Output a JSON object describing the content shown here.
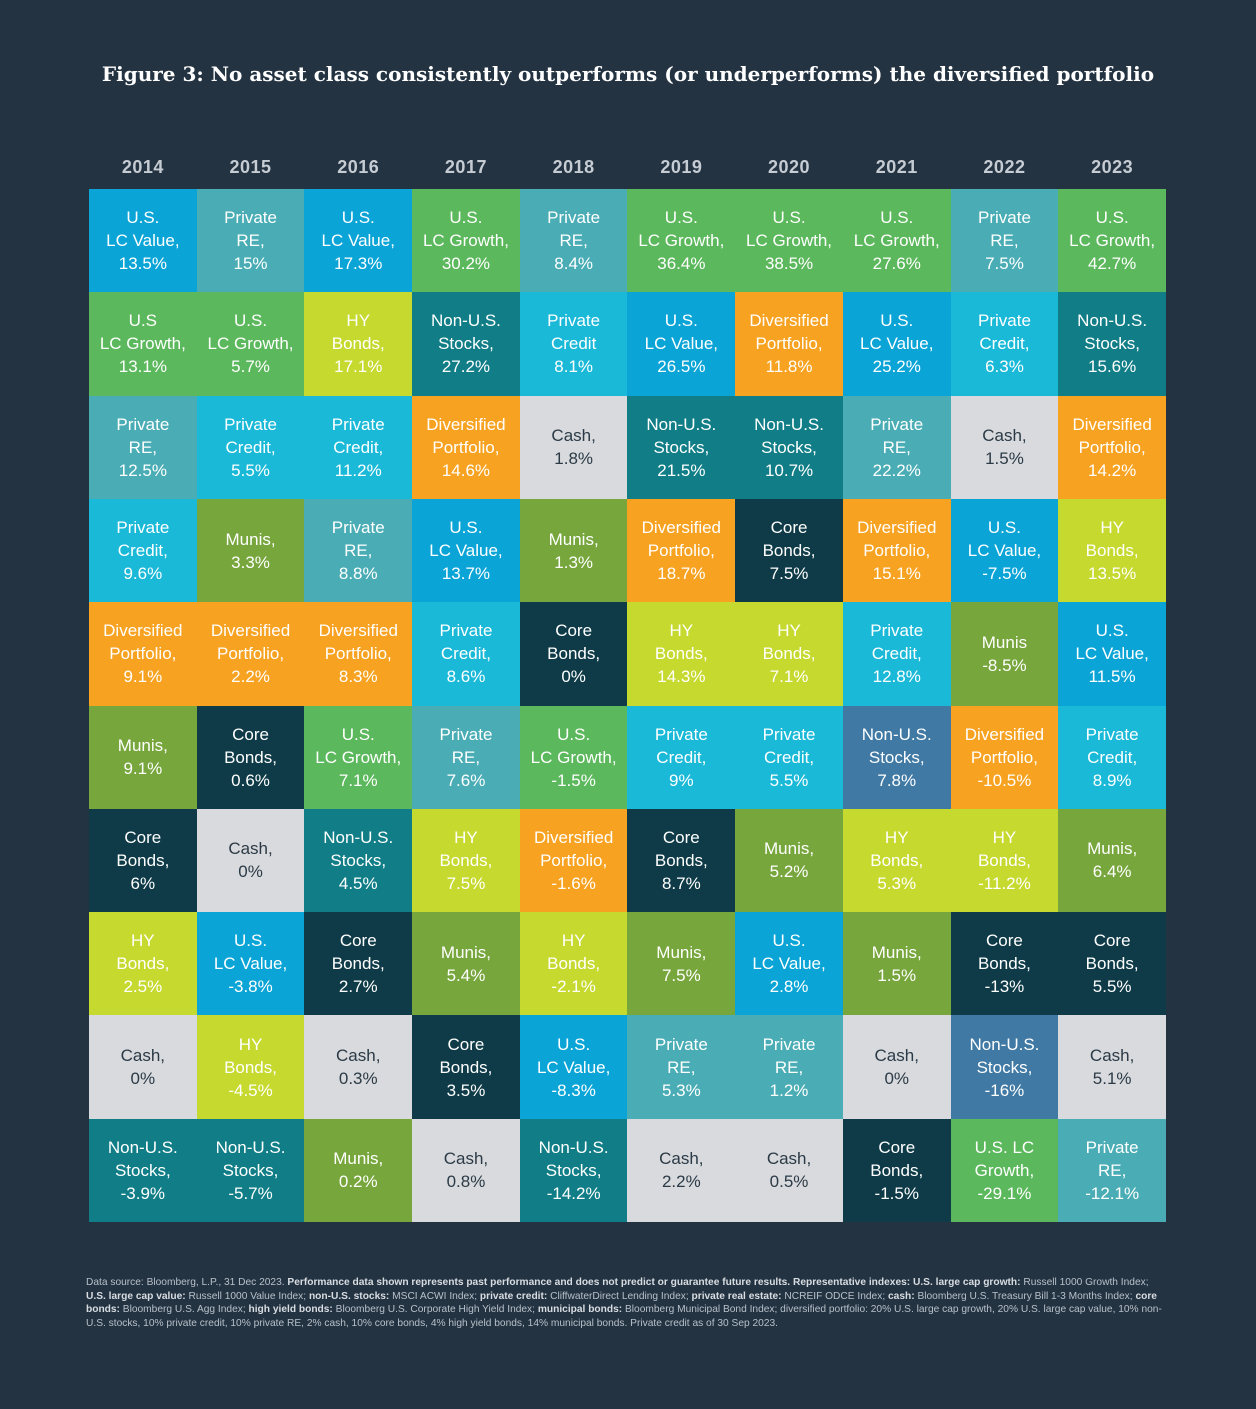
{
  "title": "Figure 3: No asset class consistently outperforms (or underperforms) the diversified portfolio",
  "colors": {
    "background": "#243342",
    "lc_value": "#0aa4d6",
    "lc_growth": "#5cb85c",
    "private_re": "#4aadb5",
    "private_credit": "#1ab9d8",
    "hy_bonds": "#c6d92e",
    "non_us_stocks": "#117e87",
    "diversified": "#f7a220",
    "cash": "#d8dadd",
    "munis": "#77a63c",
    "core_bonds": "#0e3b47",
    "non_us_stocks_alt": "#3f79a4"
  },
  "chart_data": {
    "type": "table",
    "title": "Figure 3: No asset class consistently outperforms (or underperforms) the diversified portfolio",
    "years": [
      "2014",
      "2015",
      "2016",
      "2017",
      "2018",
      "2019",
      "2020",
      "2021",
      "2022",
      "2023"
    ],
    "columns": [
      [
        {
          "lines": [
            "U.S.",
            "LC Value,",
            "13.5%"
          ],
          "asset": "lc_value"
        },
        {
          "lines": [
            "U.S",
            "LC Growth,",
            "13.1%"
          ],
          "asset": "lc_growth"
        },
        {
          "lines": [
            "Private",
            "RE,",
            "12.5%"
          ],
          "asset": "private_re"
        },
        {
          "lines": [
            "Private",
            "Credit,",
            "9.6%"
          ],
          "asset": "private_credit"
        },
        {
          "lines": [
            "Diversified",
            "Portfolio,",
            "9.1%"
          ],
          "asset": "diversified"
        },
        {
          "lines": [
            "Munis,",
            "9.1%"
          ],
          "asset": "munis"
        },
        {
          "lines": [
            "Core",
            "Bonds,",
            "6%"
          ],
          "asset": "core_bonds"
        },
        {
          "lines": [
            "HY",
            "Bonds,",
            "2.5%"
          ],
          "asset": "hy_bonds"
        },
        {
          "lines": [
            "Cash,",
            "0%"
          ],
          "asset": "cash"
        },
        {
          "lines": [
            "Non-U.S.",
            "Stocks,",
            "-3.9%"
          ],
          "asset": "non_us_stocks"
        }
      ],
      [
        {
          "lines": [
            "Private",
            "RE,",
            "15%"
          ],
          "asset": "private_re"
        },
        {
          "lines": [
            "U.S.",
            "LC Growth,",
            "5.7%"
          ],
          "asset": "lc_growth"
        },
        {
          "lines": [
            "Private",
            "Credit,",
            "5.5%"
          ],
          "asset": "private_credit"
        },
        {
          "lines": [
            "Munis,",
            "3.3%"
          ],
          "asset": "munis"
        },
        {
          "lines": [
            "Diversified",
            "Portfolio,",
            "2.2%"
          ],
          "asset": "diversified"
        },
        {
          "lines": [
            "Core",
            "Bonds,",
            "0.6%"
          ],
          "asset": "core_bonds"
        },
        {
          "lines": [
            "Cash,",
            "0%"
          ],
          "asset": "cash"
        },
        {
          "lines": [
            "U.S.",
            "LC Value,",
            "-3.8%"
          ],
          "asset": "lc_value"
        },
        {
          "lines": [
            "HY",
            "Bonds,",
            "-4.5%"
          ],
          "asset": "hy_bonds"
        },
        {
          "lines": [
            "Non-U.S.",
            "Stocks,",
            "-5.7%"
          ],
          "asset": "non_us_stocks"
        }
      ],
      [
        {
          "lines": [
            "U.S.",
            "LC Value,",
            "17.3%"
          ],
          "asset": "lc_value"
        },
        {
          "lines": [
            "HY",
            "Bonds,",
            "17.1%"
          ],
          "asset": "hy_bonds"
        },
        {
          "lines": [
            "Private",
            "Credit,",
            "11.2%"
          ],
          "asset": "private_credit"
        },
        {
          "lines": [
            "Private",
            "RE,",
            "8.8%"
          ],
          "asset": "private_re"
        },
        {
          "lines": [
            "Diversified",
            "Portfolio,",
            "8.3%"
          ],
          "asset": "diversified"
        },
        {
          "lines": [
            "U.S.",
            "LC Growth,",
            "7.1%"
          ],
          "asset": "lc_growth"
        },
        {
          "lines": [
            "Non-U.S.",
            "Stocks,",
            "4.5%"
          ],
          "asset": "non_us_stocks"
        },
        {
          "lines": [
            "Core",
            "Bonds,",
            "2.7%"
          ],
          "asset": "core_bonds"
        },
        {
          "lines": [
            "Cash,",
            "0.3%"
          ],
          "asset": "cash"
        },
        {
          "lines": [
            "Munis,",
            "0.2%"
          ],
          "asset": "munis"
        }
      ],
      [
        {
          "lines": [
            "U.S.",
            "LC Growth,",
            "30.2%"
          ],
          "asset": "lc_growth"
        },
        {
          "lines": [
            "Non-U.S.",
            "Stocks,",
            "27.2%"
          ],
          "asset": "non_us_stocks"
        },
        {
          "lines": [
            "Diversified",
            "Portfolio,",
            "14.6%"
          ],
          "asset": "diversified"
        },
        {
          "lines": [
            "U.S.",
            "LC Value,",
            "13.7%"
          ],
          "asset": "lc_value"
        },
        {
          "lines": [
            "Private",
            "Credit,",
            "8.6%"
          ],
          "asset": "private_credit"
        },
        {
          "lines": [
            "Private",
            "RE,",
            "7.6%"
          ],
          "asset": "private_re"
        },
        {
          "lines": [
            "HY",
            "Bonds,",
            "7.5%"
          ],
          "asset": "hy_bonds"
        },
        {
          "lines": [
            "Munis,",
            "5.4%"
          ],
          "asset": "munis"
        },
        {
          "lines": [
            "Core",
            "Bonds,",
            "3.5%"
          ],
          "asset": "core_bonds"
        },
        {
          "lines": [
            "Cash,",
            "0.8%"
          ],
          "asset": "cash"
        }
      ],
      [
        {
          "lines": [
            "Private",
            "RE,",
            "8.4%"
          ],
          "asset": "private_re"
        },
        {
          "lines": [
            "Private",
            "Credit",
            "8.1%"
          ],
          "asset": "private_credit"
        },
        {
          "lines": [
            "Cash,",
            "1.8%"
          ],
          "asset": "cash"
        },
        {
          "lines": [
            "Munis,",
            "1.3%"
          ],
          "asset": "munis"
        },
        {
          "lines": [
            "Core",
            "Bonds,",
            "0%"
          ],
          "asset": "core_bonds"
        },
        {
          "lines": [
            "U.S.",
            "LC Growth,",
            "-1.5%"
          ],
          "asset": "lc_growth"
        },
        {
          "lines": [
            "Diversified",
            "Portfolio,",
            "-1.6%"
          ],
          "asset": "diversified"
        },
        {
          "lines": [
            "HY",
            "Bonds,",
            "-2.1%"
          ],
          "asset": "hy_bonds"
        },
        {
          "lines": [
            "U.S.",
            "LC Value,",
            "-8.3%"
          ],
          "asset": "lc_value"
        },
        {
          "lines": [
            "Non-U.S.",
            "Stocks,",
            "-14.2%"
          ],
          "asset": "non_us_stocks"
        }
      ],
      [
        {
          "lines": [
            "U.S.",
            "LC Growth,",
            "36.4%"
          ],
          "asset": "lc_growth"
        },
        {
          "lines": [
            "U.S.",
            "LC Value,",
            "26.5%"
          ],
          "asset": "lc_value"
        },
        {
          "lines": [
            "Non-U.S.",
            "Stocks,",
            "21.5%"
          ],
          "asset": "non_us_stocks"
        },
        {
          "lines": [
            "Diversified",
            "Portfolio,",
            "18.7%"
          ],
          "asset": "diversified"
        },
        {
          "lines": [
            "HY",
            "Bonds,",
            "14.3%"
          ],
          "asset": "hy_bonds"
        },
        {
          "lines": [
            "Private",
            "Credit,",
            "9%"
          ],
          "asset": "private_credit"
        },
        {
          "lines": [
            "Core",
            "Bonds,",
            "8.7%"
          ],
          "asset": "core_bonds"
        },
        {
          "lines": [
            "Munis,",
            "7.5%"
          ],
          "asset": "munis"
        },
        {
          "lines": [
            "Private",
            "RE,",
            "5.3%"
          ],
          "asset": "private_re"
        },
        {
          "lines": [
            "Cash,",
            "2.2%"
          ],
          "asset": "cash"
        }
      ],
      [
        {
          "lines": [
            "U.S.",
            "LC Growth,",
            "38.5%"
          ],
          "asset": "lc_growth"
        },
        {
          "lines": [
            "Diversified",
            "Portfolio,",
            "11.8%"
          ],
          "asset": "diversified"
        },
        {
          "lines": [
            "Non-U.S.",
            "Stocks,",
            "10.7%"
          ],
          "asset": "non_us_stocks"
        },
        {
          "lines": [
            "Core",
            "Bonds,",
            "7.5%"
          ],
          "asset": "core_bonds"
        },
        {
          "lines": [
            "HY",
            "Bonds,",
            "7.1%"
          ],
          "asset": "hy_bonds"
        },
        {
          "lines": [
            "Private",
            "Credit,",
            "5.5%"
          ],
          "asset": "private_credit"
        },
        {
          "lines": [
            "Munis,",
            "5.2%"
          ],
          "asset": "munis"
        },
        {
          "lines": [
            "U.S.",
            "LC Value,",
            "2.8%"
          ],
          "asset": "lc_value"
        },
        {
          "lines": [
            "Private",
            "RE,",
            "1.2%"
          ],
          "asset": "private_re"
        },
        {
          "lines": [
            "Cash,",
            "0.5%"
          ],
          "asset": "cash"
        }
      ],
      [
        {
          "lines": [
            "U.S.",
            "LC Growth,",
            "27.6%"
          ],
          "asset": "lc_growth"
        },
        {
          "lines": [
            "U.S.",
            "LC Value,",
            "25.2%"
          ],
          "asset": "lc_value"
        },
        {
          "lines": [
            "Private",
            "RE,",
            "22.2%"
          ],
          "asset": "private_re"
        },
        {
          "lines": [
            "Diversified",
            "Portfolio,",
            "15.1%"
          ],
          "asset": "diversified"
        },
        {
          "lines": [
            "Private",
            "Credit,",
            "12.8%"
          ],
          "asset": "private_credit"
        },
        {
          "lines": [
            "Non-U.S.",
            "Stocks,",
            "7.8%"
          ],
          "asset": "non_us_stocks_alt"
        },
        {
          "lines": [
            "HY",
            "Bonds,",
            "5.3%"
          ],
          "asset": "hy_bonds"
        },
        {
          "lines": [
            "Munis,",
            "1.5%"
          ],
          "asset": "munis"
        },
        {
          "lines": [
            "Cash,",
            "0%"
          ],
          "asset": "cash"
        },
        {
          "lines": [
            "Core",
            "Bonds,",
            "-1.5%"
          ],
          "asset": "core_bonds"
        }
      ],
      [
        {
          "lines": [
            "Private",
            "RE,",
            "7.5%"
          ],
          "asset": "private_re"
        },
        {
          "lines": [
            "Private",
            "Credit,",
            "6.3%"
          ],
          "asset": "private_credit"
        },
        {
          "lines": [
            "Cash,",
            "1.5%"
          ],
          "asset": "cash"
        },
        {
          "lines": [
            "U.S.",
            "LC Value,",
            "-7.5%"
          ],
          "asset": "lc_value"
        },
        {
          "lines": [
            "Munis",
            "-8.5%"
          ],
          "asset": "munis"
        },
        {
          "lines": [
            "Diversified",
            "Portfolio,",
            "-10.5%"
          ],
          "asset": "diversified"
        },
        {
          "lines": [
            "HY",
            "Bonds,",
            "-11.2%"
          ],
          "asset": "hy_bonds"
        },
        {
          "lines": [
            "Core",
            "Bonds,",
            "-13%"
          ],
          "asset": "core_bonds"
        },
        {
          "lines": [
            "Non-U.S.",
            "Stocks,",
            "-16%"
          ],
          "asset": "non_us_stocks_alt"
        },
        {
          "lines": [
            "U.S. LC",
            "Growth,",
            "-29.1%"
          ],
          "asset": "lc_growth"
        }
      ],
      [
        {
          "lines": [
            "U.S.",
            "LC Growth,",
            "42.7%"
          ],
          "asset": "lc_growth"
        },
        {
          "lines": [
            "Non-U.S.",
            "Stocks,",
            "15.6%"
          ],
          "asset": "non_us_stocks"
        },
        {
          "lines": [
            "Diversified",
            "Portfolio,",
            "14.2%"
          ],
          "asset": "diversified"
        },
        {
          "lines": [
            "HY",
            "Bonds,",
            "13.5%"
          ],
          "asset": "hy_bonds"
        },
        {
          "lines": [
            "U.S.",
            "LC Value,",
            "11.5%"
          ],
          "asset": "lc_value"
        },
        {
          "lines": [
            "Private",
            "Credit,",
            "8.9%"
          ],
          "asset": "private_credit"
        },
        {
          "lines": [
            "Munis,",
            "6.4%"
          ],
          "asset": "munis"
        },
        {
          "lines": [
            "Core",
            "Bonds,",
            "5.5%"
          ],
          "asset": "core_bonds"
        },
        {
          "lines": [
            "Cash,",
            "5.1%"
          ],
          "asset": "cash"
        },
        {
          "lines": [
            "Private",
            "RE,",
            "-12.1%"
          ],
          "asset": "private_re"
        }
      ]
    ]
  },
  "footnote": [
    {
      "text": "Data source: Bloomberg, L.P., 31 Dec 2023. ",
      "bold": false
    },
    {
      "text": "Performance data shown represents past performance and does not predict or guarantee future results. Representative indexes: U.S. large cap growth:",
      "bold": true
    },
    {
      "text": " Russell 1000 Growth Index; ",
      "bold": false
    },
    {
      "text": "U.S. large cap value:",
      "bold": true
    },
    {
      "text": " Russell 1000 Value Index; ",
      "bold": false
    },
    {
      "text": "non-U.S. stocks:",
      "bold": true
    },
    {
      "text": " MSCI ACWI Index; ",
      "bold": false
    },
    {
      "text": "private credit:",
      "bold": true
    },
    {
      "text": " CliffwaterDirect Lending Index; ",
      "bold": false
    },
    {
      "text": "private real estate:",
      "bold": true
    },
    {
      "text": " NCREIF ODCE Index; ",
      "bold": false
    },
    {
      "text": "cash:",
      "bold": true
    },
    {
      "text": " Bloomberg U.S. Treasury Bill 1-3 Months Index; ",
      "bold": false
    },
    {
      "text": "core bonds:",
      "bold": true
    },
    {
      "text": " Bloomberg U.S. Agg Index; ",
      "bold": false
    },
    {
      "text": "high yield bonds:",
      "bold": true
    },
    {
      "text": " Bloomberg U.S. Corporate High Yield Index; ",
      "bold": false
    },
    {
      "text": "municipal bonds:",
      "bold": true
    },
    {
      "text": " Bloomberg Municipal Bond Index; diversified portfolio: 20% U.S. large cap growth, 20% U.S. large cap value, 10% non-U.S. stocks, 10% private credit, 10% private RE, 2% cash, 10% core bonds, 4% high yield bonds, 14% municipal bonds. Private credit as of 30 Sep 2023.",
      "bold": false
    }
  ]
}
